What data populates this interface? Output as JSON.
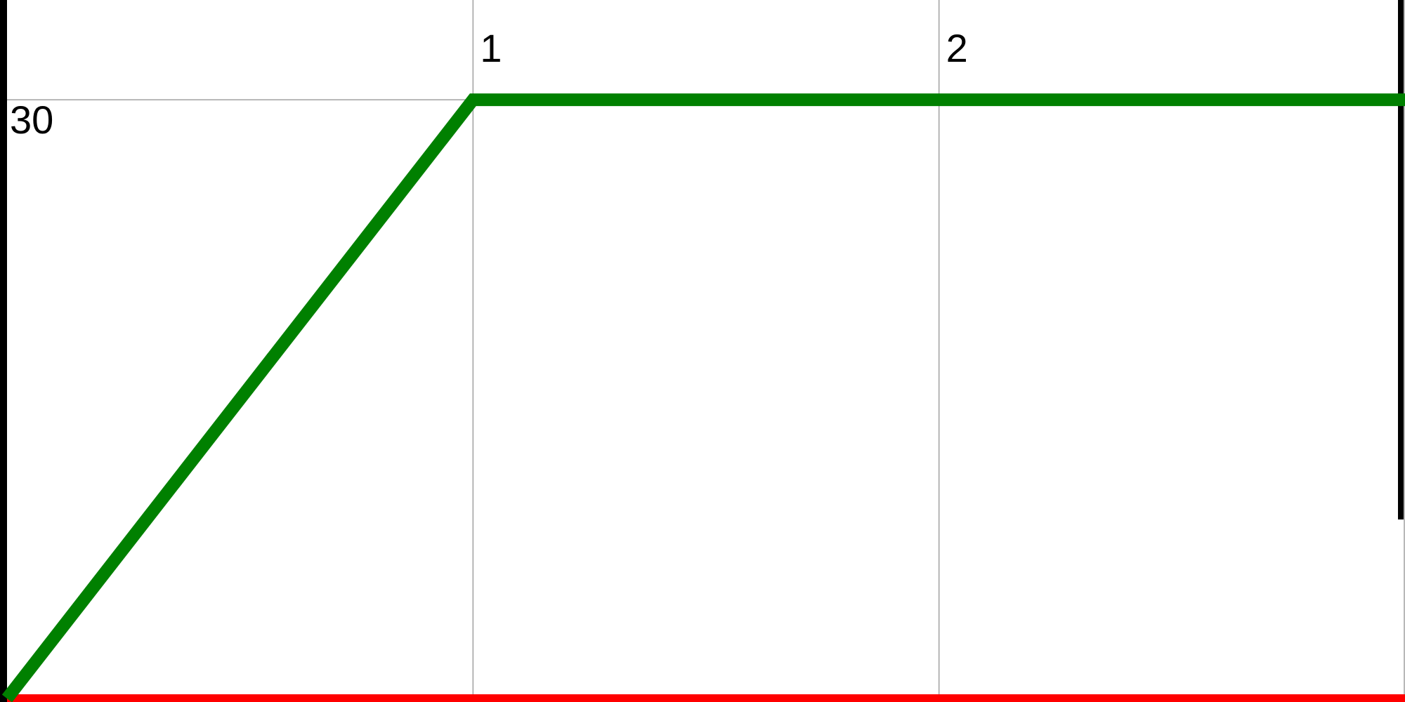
{
  "chart_data": {
    "type": "line",
    "title": "",
    "xlabel": "",
    "ylabel": "",
    "x_ticks": [
      {
        "value": 1,
        "label": "1"
      },
      {
        "value": 2,
        "label": "2"
      }
    ],
    "y_ticks": [
      {
        "value": 30,
        "label": "30"
      }
    ],
    "xlim": [
      0,
      3
    ],
    "ylim": [
      0,
      35
    ],
    "grid": true,
    "legend": "none",
    "series": [
      {
        "color": "#008000",
        "x": [
          0,
          1,
          2,
          3
        ],
        "y": [
          0,
          30,
          30,
          30
        ]
      },
      {
        "color": "#ff0000",
        "x": [
          0,
          1,
          2,
          3
        ],
        "y": [
          0,
          0,
          0,
          0
        ]
      }
    ],
    "colors": {
      "grid": "#a0a0a0",
      "axis": "#000000",
      "background": "#ffffff"
    }
  }
}
